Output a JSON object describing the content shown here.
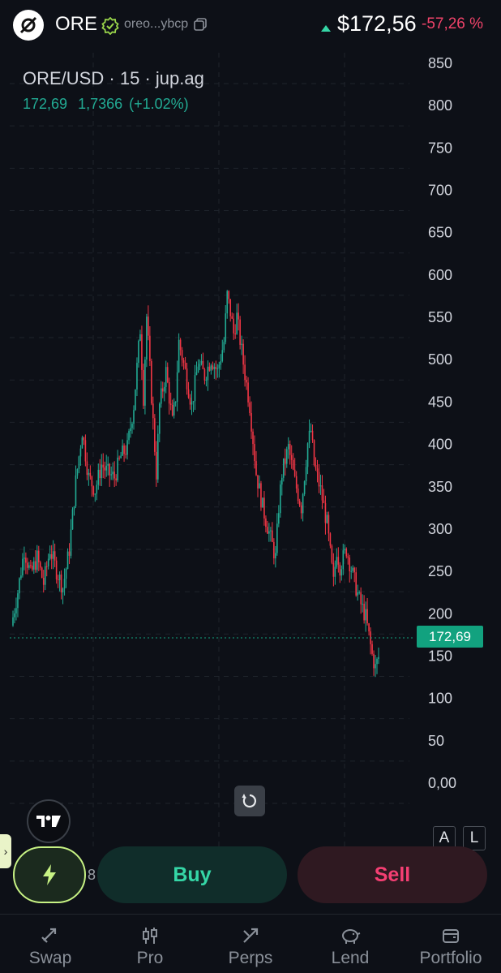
{
  "header": {
    "token_symbol": "ORE",
    "address_short": "oreo...ybcp",
    "price": "$172,56",
    "change": "-57,26 %",
    "icons": [
      "ore-logo-icon",
      "verified-badge-icon",
      "copy-icon",
      "up-arrow-icon"
    ]
  },
  "chart_data": {
    "type": "candlestick",
    "symbol": "ORE/USD",
    "interval": "15",
    "source": "jup.ag",
    "legend": {
      "close": "172,69",
      "change": "1,7366",
      "change_pct": "(+1.02%)"
    },
    "y_ticks": [
      "850",
      "800",
      "750",
      "700",
      "650",
      "600",
      "550",
      "500",
      "450",
      "400",
      "350",
      "300",
      "250",
      "200",
      "150",
      "100",
      "50",
      "0,00"
    ],
    "ylim": [
      0,
      850
    ],
    "current_price_label": "172,69",
    "current_price": 172.69,
    "price_path": [
      [
        0,
        210
      ],
      [
        2,
        250
      ],
      [
        4,
        300
      ],
      [
        6,
        270
      ],
      [
        8,
        290
      ],
      [
        10,
        260
      ],
      [
        12,
        300
      ],
      [
        14,
        275
      ],
      [
        16,
        255
      ],
      [
        18,
        300
      ],
      [
        20,
        380
      ],
      [
        22,
        440
      ],
      [
        24,
        385
      ],
      [
        26,
        370
      ],
      [
        28,
        400
      ],
      [
        30,
        390
      ],
      [
        32,
        385
      ],
      [
        34,
        410
      ],
      [
        36,
        420
      ],
      [
        38,
        470
      ],
      [
        40,
        560
      ],
      [
        41,
        480
      ],
      [
        42,
        575
      ],
      [
        44,
        450
      ],
      [
        45,
        390
      ],
      [
        46,
        470
      ],
      [
        48,
        510
      ],
      [
        50,
        450
      ],
      [
        51,
        480
      ],
      [
        52,
        545
      ],
      [
        54,
        510
      ],
      [
        56,
        470
      ],
      [
        58,
        520
      ],
      [
        60,
        505
      ],
      [
        62,
        525
      ],
      [
        64,
        510
      ],
      [
        66,
        545
      ],
      [
        67,
        600
      ],
      [
        68,
        580
      ],
      [
        69,
        555
      ],
      [
        70,
        575
      ],
      [
        72,
        520
      ],
      [
        74,
        470
      ],
      [
        76,
        390
      ],
      [
        78,
        350
      ],
      [
        80,
        320
      ],
      [
        82,
        290
      ],
      [
        83,
        350
      ],
      [
        84,
        390
      ],
      [
        86,
        420
      ],
      [
        88,
        380
      ],
      [
        90,
        350
      ],
      [
        92,
        425
      ],
      [
        93,
        440
      ],
      [
        94,
        400
      ],
      [
        96,
        370
      ],
      [
        98,
        330
      ],
      [
        100,
        260
      ],
      [
        101,
        300
      ],
      [
        102,
        280
      ],
      [
        104,
        300
      ],
      [
        106,
        270
      ],
      [
        108,
        240
      ],
      [
        109,
        230
      ],
      [
        110,
        220
      ],
      [
        112,
        175
      ],
      [
        113,
        160
      ],
      [
        114,
        172.69
      ]
    ],
    "grid": true,
    "colors": {
      "up": "#22ab94",
      "down": "#f23645"
    }
  },
  "controls": {
    "scale_auto": "A",
    "scale_log": "L",
    "x_label_partial": "8",
    "side_tab": "›",
    "icons": [
      "tradingview-logo-icon",
      "reset-chart-icon",
      "lightning-icon"
    ]
  },
  "actions": {
    "buy": "Buy",
    "sell": "Sell"
  },
  "nav": {
    "items": [
      {
        "label": "Swap",
        "icon": "swap-icon"
      },
      {
        "label": "Pro",
        "icon": "pro-icon"
      },
      {
        "label": "Perps",
        "icon": "perps-icon"
      },
      {
        "label": "Lend",
        "icon": "lend-icon"
      },
      {
        "label": "Portfolio",
        "icon": "portfolio-icon"
      }
    ]
  },
  "colors": {
    "background": "#0d1017",
    "accent_green": "#12a27f",
    "accent_red": "#f43f73",
    "lime": "#c7f284"
  }
}
